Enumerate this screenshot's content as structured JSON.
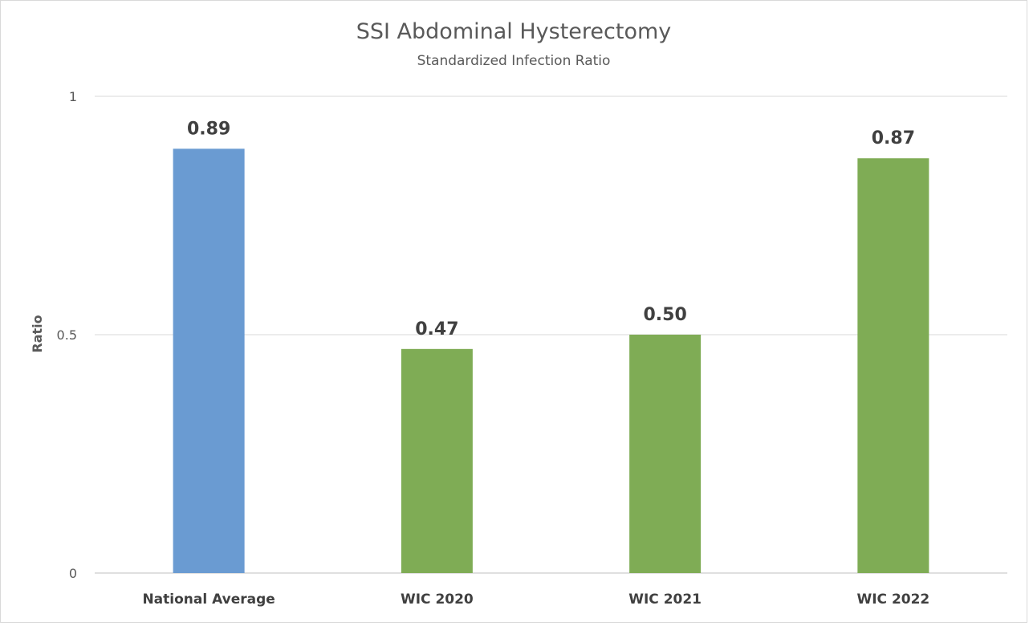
{
  "chart_data": {
    "type": "bar",
    "title": "SSI Abdominal Hysterectomy",
    "subtitle": "Standardized Infection Ratio",
    "xlabel": "",
    "ylabel": "Ratio",
    "ylim": [
      0,
      1
    ],
    "yticks": [
      {
        "value": 0,
        "label": "0"
      },
      {
        "value": 0.5,
        "label": "0.5"
      },
      {
        "value": 1,
        "label": "1"
      }
    ],
    "grid": true,
    "legend": "none",
    "categories": [
      "National Average",
      "WIC 2020",
      "WIC 2021",
      "WIC 2022"
    ],
    "values": [
      0.89,
      0.47,
      0.5,
      0.87
    ],
    "data_labels": [
      "0.89",
      "0.47",
      "0.50",
      "0.87"
    ],
    "colors": [
      "#6a9bd2",
      "#7fac55",
      "#7fac55",
      "#7fac55"
    ]
  }
}
